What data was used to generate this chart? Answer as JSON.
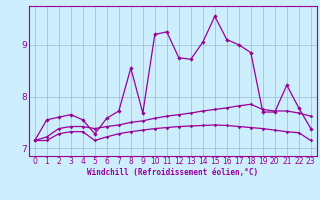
{
  "xlabel": "Windchill (Refroidissement éolien,°C)",
  "bg_color": "#cceeff",
  "line_color": "#990099",
  "grid_color": "#99bbcc",
  "xlim": [
    -0.5,
    23.5
  ],
  "ylim": [
    6.85,
    9.75
  ],
  "yticks": [
    7,
    8,
    9
  ],
  "xticks": [
    0,
    1,
    2,
    3,
    4,
    5,
    6,
    7,
    8,
    9,
    10,
    11,
    12,
    13,
    14,
    15,
    16,
    17,
    18,
    19,
    20,
    21,
    22,
    23
  ],
  "line1_x": [
    0,
    1,
    2,
    3,
    4,
    5,
    6,
    7,
    8,
    9,
    10,
    11,
    12,
    13,
    14,
    15,
    16,
    17,
    18,
    19,
    20,
    21,
    22,
    23
  ],
  "line1_y": [
    7.15,
    7.55,
    7.6,
    7.65,
    7.55,
    7.28,
    7.58,
    7.72,
    8.55,
    7.68,
    9.2,
    9.25,
    8.75,
    8.72,
    9.05,
    9.55,
    9.1,
    9.0,
    8.85,
    7.7,
    7.7,
    8.22,
    7.78,
    7.38
  ],
  "line2_x": [
    0,
    1,
    2,
    3,
    4,
    5,
    6,
    7,
    8,
    9,
    10,
    11,
    12,
    13,
    14,
    15,
    16,
    17,
    18,
    19,
    20,
    21,
    22,
    23
  ],
  "line2_y": [
    7.15,
    7.22,
    7.38,
    7.42,
    7.42,
    7.38,
    7.42,
    7.45,
    7.5,
    7.53,
    7.58,
    7.62,
    7.65,
    7.68,
    7.72,
    7.75,
    7.78,
    7.82,
    7.85,
    7.75,
    7.72,
    7.72,
    7.68,
    7.62
  ],
  "line3_x": [
    0,
    1,
    2,
    3,
    4,
    5,
    6,
    7,
    8,
    9,
    10,
    11,
    12,
    13,
    14,
    15,
    16,
    17,
    18,
    19,
    20,
    21,
    22,
    23
  ],
  "line3_y": [
    7.15,
    7.15,
    7.28,
    7.32,
    7.32,
    7.15,
    7.22,
    7.28,
    7.32,
    7.35,
    7.38,
    7.4,
    7.42,
    7.43,
    7.44,
    7.45,
    7.44,
    7.42,
    7.4,
    7.38,
    7.35,
    7.32,
    7.3,
    7.15
  ],
  "tick_fontsize": 5.5,
  "xlabel_fontsize": 5.5
}
